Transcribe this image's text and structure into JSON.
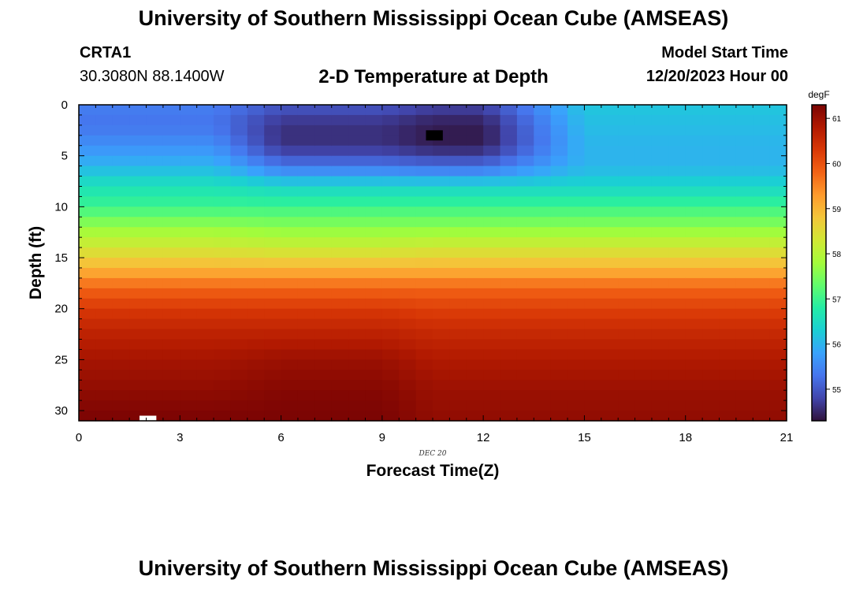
{
  "header": {
    "title": "University of Southern Mississippi Ocean Cube (AMSEAS)",
    "station_id": "CRTA1",
    "station_coords": "30.3080N  88.1400W",
    "chart_title": "2-D Temperature at Depth",
    "model_start_label": "Model Start Time",
    "model_start_value": "12/20/2023 Hour 00"
  },
  "footer": {
    "title": "University of Southern Mississippi Ocean Cube (AMSEAS)"
  },
  "chart_data": {
    "type": "heatmap",
    "title": "2-D Temperature at Depth",
    "xlabel": "Forecast Time(Z)",
    "ylabel": "Depth (ft)",
    "date_label": "DEC 20",
    "colorbar_unit": "degF",
    "xlim": [
      0,
      21
    ],
    "ylim": [
      0,
      31
    ],
    "y_inverted": true,
    "x_ticks": [
      0,
      3,
      6,
      9,
      12,
      15,
      18,
      21
    ],
    "y_ticks": [
      0,
      5,
      10,
      15,
      20,
      25,
      30
    ],
    "colorbar_range": [
      54.3,
      61.3
    ],
    "colorbar_ticks": [
      55,
      56,
      57,
      58,
      59,
      60,
      61
    ],
    "colormap": [
      "#30123b",
      "#4145ab",
      "#4675ed",
      "#39a2fc",
      "#1bcfd4",
      "#24eca6",
      "#61fc6c",
      "#a4fc3b",
      "#d1e834",
      "#f3c63a",
      "#fe9b2d",
      "#f36315",
      "#d93806",
      "#b11901",
      "#7a0403"
    ],
    "grid": false,
    "depth_profile_by_hour": [
      {
        "hours": [
          0,
          4
        ],
        "profile": [
          [
            0,
            55.4
          ],
          [
            2,
            55.3
          ],
          [
            4,
            55.6
          ],
          [
            6,
            56.0
          ],
          [
            8,
            56.6
          ],
          [
            10,
            57.0
          ],
          [
            12,
            57.7
          ],
          [
            14,
            58.3
          ],
          [
            16,
            59.0
          ],
          [
            18,
            59.8
          ],
          [
            20,
            60.3
          ],
          [
            22,
            60.6
          ],
          [
            25,
            60.9
          ],
          [
            28,
            61.1
          ],
          [
            31,
            61.3
          ]
        ]
      },
      {
        "hours": [
          6,
          9
        ],
        "profile": [
          [
            0,
            55.0
          ],
          [
            2,
            54.6
          ],
          [
            4,
            54.6
          ],
          [
            6,
            55.3
          ],
          [
            8,
            56.4
          ],
          [
            10,
            57.0
          ],
          [
            12,
            57.6
          ],
          [
            14,
            58.2
          ],
          [
            16,
            59.0
          ],
          [
            18,
            59.8
          ],
          [
            20,
            60.3
          ],
          [
            22,
            60.6
          ],
          [
            25,
            61.0
          ],
          [
            28,
            61.2
          ],
          [
            31,
            61.3
          ]
        ]
      },
      {
        "hours": [
          10.5,
          12
        ],
        "profile": [
          [
            0,
            54.8
          ],
          [
            2,
            54.4
          ],
          [
            4,
            54.4
          ],
          [
            6,
            55.2
          ],
          [
            8,
            56.4
          ],
          [
            10,
            57.0
          ],
          [
            12,
            57.6
          ],
          [
            14,
            58.3
          ],
          [
            16,
            59.0
          ],
          [
            18,
            59.8
          ],
          [
            20,
            60.2
          ],
          [
            22,
            60.5
          ],
          [
            25,
            60.8
          ],
          [
            28,
            61.0
          ],
          [
            31,
            61.1
          ]
        ]
      },
      {
        "hours": [
          15,
          21
        ],
        "profile": [
          [
            0,
            56.2
          ],
          [
            2,
            56.1
          ],
          [
            4,
            56.0
          ],
          [
            6,
            56.0
          ],
          [
            8,
            56.4
          ],
          [
            10,
            57.0
          ],
          [
            12,
            57.6
          ],
          [
            14,
            58.3
          ],
          [
            16,
            59.0
          ],
          [
            18,
            59.8
          ],
          [
            20,
            60.2
          ],
          [
            22,
            60.5
          ],
          [
            25,
            60.8
          ],
          [
            28,
            61.0
          ],
          [
            31,
            61.1
          ]
        ]
      }
    ],
    "missing_cells": [
      {
        "x": [
          10.3,
          10.8
        ],
        "y": [
          2.5,
          3.5
        ],
        "color": "#000000"
      },
      {
        "x": [
          1.8,
          2.3
        ],
        "y": [
          30.5,
          31
        ],
        "color": "#ffffff"
      }
    ]
  }
}
